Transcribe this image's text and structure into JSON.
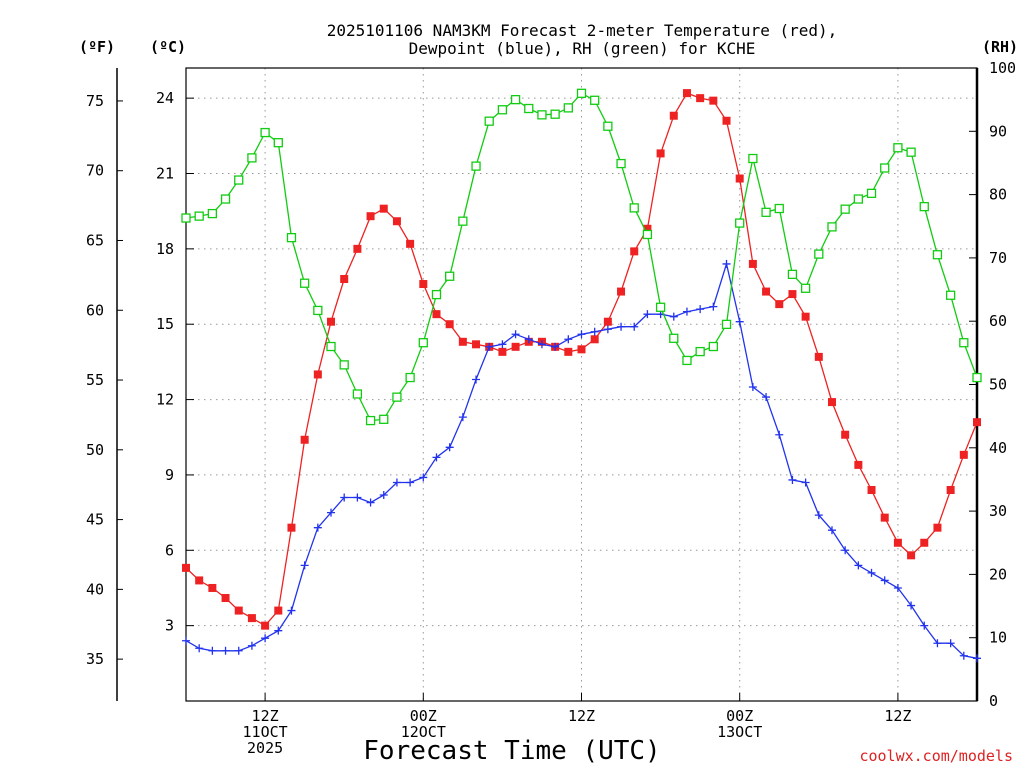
{
  "chart_data": {
    "type": "line",
    "title_lines": [
      "2025101106 NAM3KM Forecast 2-meter Temperature (red),",
      "Dewpoint (blue), RH (green) for KCHE"
    ],
    "xlabel": "Forecast Time (UTC)",
    "credit": "coolwx.com/models",
    "x_unit": "hours since 2025-10-11 06Z",
    "xlim": [
      0,
      60
    ],
    "x_ticks": [
      {
        "x": 6,
        "lines": [
          "12Z",
          "11OCT",
          "2025"
        ]
      },
      {
        "x": 18,
        "lines": [
          "00Z",
          "12OCT"
        ]
      },
      {
        "x": 30,
        "lines": [
          "12Z"
        ]
      },
      {
        "x": 42,
        "lines": [
          "00Z",
          "13OCT"
        ]
      },
      {
        "x": 54,
        "lines": [
          "12Z"
        ]
      }
    ],
    "axes": {
      "celsius": {
        "label": "(ºC)",
        "lim": [
          0,
          25.2
        ],
        "ticks": [
          3,
          6,
          9,
          12,
          15,
          18,
          21,
          24
        ]
      },
      "fahrenheit": {
        "label": "(ºF)",
        "ticks": [
          35,
          40,
          45,
          50,
          55,
          60,
          65,
          70,
          75
        ]
      },
      "rh": {
        "label": "(RH)",
        "lim": [
          0,
          100
        ],
        "ticks": [
          0,
          10,
          20,
          30,
          40,
          50,
          60,
          70,
          80,
          90,
          100
        ]
      }
    },
    "grid": true,
    "series": [
      {
        "name": "2-meter Temperature",
        "unit": "C",
        "axis": "celsius",
        "color": "#ee2222",
        "marker": "filled-square",
        "x": [
          0,
          1,
          2,
          3,
          4,
          5,
          6,
          7,
          8,
          9,
          10,
          11,
          12,
          13,
          14,
          15,
          16,
          17,
          18,
          19,
          20,
          21,
          22,
          23,
          24,
          25,
          26,
          27,
          28,
          29,
          30,
          31,
          32,
          33,
          34,
          35,
          36,
          37,
          38,
          39,
          40,
          41,
          42,
          43,
          44,
          45,
          46,
          47,
          48,
          49,
          50,
          51,
          52,
          53,
          54,
          55,
          56,
          57,
          58,
          59,
          60
        ],
        "values": [
          5.3,
          4.8,
          4.5,
          4.1,
          3.6,
          3.3,
          3.0,
          3.6,
          6.9,
          10.4,
          13.0,
          15.1,
          16.8,
          18.0,
          19.3,
          19.6,
          19.1,
          18.2,
          16.6,
          15.4,
          15.0,
          14.3,
          14.2,
          14.1,
          13.9,
          14.1,
          14.3,
          14.3,
          14.1,
          13.9,
          14.0,
          14.4,
          15.1,
          16.3,
          17.9,
          18.8,
          21.8,
          23.3,
          24.2,
          24.0,
          23.9,
          23.1,
          20.8,
          17.4,
          16.3,
          15.8,
          16.2,
          15.3,
          13.7,
          11.9,
          10.6,
          9.4,
          8.4,
          7.3,
          6.3,
          5.8,
          6.3,
          6.9,
          8.4,
          9.8,
          11.1
        ]
      },
      {
        "name": "Dewpoint",
        "unit": "C",
        "axis": "celsius",
        "color": "#2233ee",
        "marker": "plus",
        "x": [
          0,
          1,
          2,
          3,
          4,
          5,
          6,
          7,
          8,
          9,
          10,
          11,
          12,
          13,
          14,
          15,
          16,
          17,
          18,
          19,
          20,
          21,
          22,
          23,
          24,
          25,
          26,
          27,
          28,
          29,
          30,
          31,
          32,
          33,
          34,
          35,
          36,
          37,
          38,
          39,
          40,
          41,
          42,
          43,
          44,
          45,
          46,
          47,
          48,
          49,
          50,
          51,
          52,
          53,
          54,
          55,
          56,
          57,
          58,
          59,
          60
        ],
        "values": [
          2.4,
          2.1,
          2.0,
          2.0,
          2.0,
          2.2,
          2.5,
          2.8,
          3.6,
          5.4,
          6.9,
          7.5,
          8.1,
          8.1,
          7.9,
          8.2,
          8.7,
          8.7,
          8.9,
          9.7,
          10.1,
          11.3,
          12.8,
          14.1,
          14.2,
          14.6,
          14.4,
          14.2,
          14.1,
          14.4,
          14.6,
          14.7,
          14.8,
          14.9,
          14.9,
          15.4,
          15.4,
          15.3,
          15.5,
          15.6,
          15.7,
          17.4,
          15.1,
          12.5,
          12.1,
          10.6,
          8.8,
          8.7,
          7.4,
          6.8,
          6.0,
          5.4,
          5.1,
          4.8,
          4.5,
          3.8,
          3.0,
          2.3,
          2.3,
          1.8,
          1.7
        ]
      },
      {
        "name": "RH",
        "unit": "%",
        "axis": "rh",
        "color": "#11cc11",
        "marker": "open-square",
        "x": [
          0,
          1,
          2,
          3,
          4,
          5,
          6,
          7,
          8,
          9,
          10,
          11,
          12,
          13,
          14,
          15,
          16,
          17,
          18,
          19,
          20,
          21,
          22,
          23,
          24,
          25,
          26,
          27,
          28,
          29,
          30,
          31,
          32,
          33,
          34,
          35,
          36,
          37,
          38,
          39,
          40,
          41,
          42,
          43,
          44,
          45,
          46,
          47,
          48,
          49,
          50,
          51,
          52,
          53,
          54,
          55,
          56,
          57,
          58,
          59,
          60
        ],
        "values": [
          76.3,
          76.6,
          77.0,
          79.3,
          82.3,
          85.8,
          89.8,
          88.2,
          73.2,
          66.0,
          61.7,
          56.0,
          53.1,
          48.5,
          44.3,
          44.5,
          48.0,
          51.1,
          56.6,
          64.2,
          67.1,
          75.8,
          84.5,
          91.6,
          93.4,
          95.0,
          93.6,
          92.6,
          92.7,
          93.7,
          96.0,
          94.9,
          90.8,
          84.9,
          77.9,
          73.7,
          62.2,
          57.3,
          53.8,
          55.2,
          56.0,
          59.5,
          75.5,
          85.7,
          77.2,
          77.8,
          67.4,
          65.2,
          70.6,
          74.9,
          77.7,
          79.3,
          80.2,
          84.2,
          87.4,
          86.7,
          78.1,
          70.5,
          64.1,
          56.6,
          51.1
        ]
      }
    ]
  }
}
